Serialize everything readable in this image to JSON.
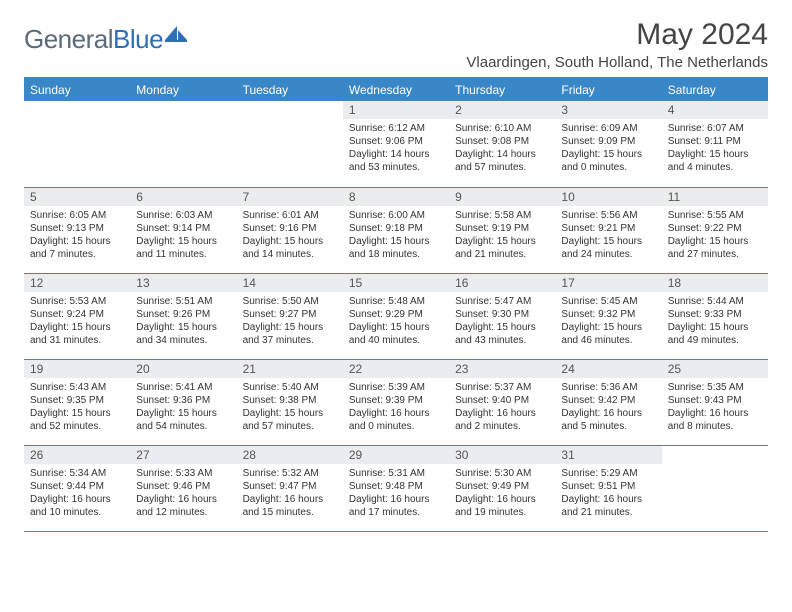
{
  "brand": {
    "part1": "General",
    "part2": "Blue"
  },
  "title": "May 2024",
  "location": "Vlaardingen, South Holland, The Netherlands",
  "colors": {
    "header_bg": "#3a87c7",
    "header_text": "#ffffff",
    "daynum_bg": "#e9edf0",
    "rule": "#3a87c7",
    "logo_gray": "#5a6a78",
    "logo_blue": "#2e6fb5"
  },
  "weekdays": [
    "Sunday",
    "Monday",
    "Tuesday",
    "Wednesday",
    "Thursday",
    "Friday",
    "Saturday"
  ],
  "weeks": [
    [
      null,
      null,
      null,
      {
        "n": "1",
        "sr": "6:12 AM",
        "ss": "9:06 PM",
        "dl": "14 hours and 53 minutes."
      },
      {
        "n": "2",
        "sr": "6:10 AM",
        "ss": "9:08 PM",
        "dl": "14 hours and 57 minutes."
      },
      {
        "n": "3",
        "sr": "6:09 AM",
        "ss": "9:09 PM",
        "dl": "15 hours and 0 minutes."
      },
      {
        "n": "4",
        "sr": "6:07 AM",
        "ss": "9:11 PM",
        "dl": "15 hours and 4 minutes."
      }
    ],
    [
      {
        "n": "5",
        "sr": "6:05 AM",
        "ss": "9:13 PM",
        "dl": "15 hours and 7 minutes."
      },
      {
        "n": "6",
        "sr": "6:03 AM",
        "ss": "9:14 PM",
        "dl": "15 hours and 11 minutes."
      },
      {
        "n": "7",
        "sr": "6:01 AM",
        "ss": "9:16 PM",
        "dl": "15 hours and 14 minutes."
      },
      {
        "n": "8",
        "sr": "6:00 AM",
        "ss": "9:18 PM",
        "dl": "15 hours and 18 minutes."
      },
      {
        "n": "9",
        "sr": "5:58 AM",
        "ss": "9:19 PM",
        "dl": "15 hours and 21 minutes."
      },
      {
        "n": "10",
        "sr": "5:56 AM",
        "ss": "9:21 PM",
        "dl": "15 hours and 24 minutes."
      },
      {
        "n": "11",
        "sr": "5:55 AM",
        "ss": "9:22 PM",
        "dl": "15 hours and 27 minutes."
      }
    ],
    [
      {
        "n": "12",
        "sr": "5:53 AM",
        "ss": "9:24 PM",
        "dl": "15 hours and 31 minutes."
      },
      {
        "n": "13",
        "sr": "5:51 AM",
        "ss": "9:26 PM",
        "dl": "15 hours and 34 minutes."
      },
      {
        "n": "14",
        "sr": "5:50 AM",
        "ss": "9:27 PM",
        "dl": "15 hours and 37 minutes."
      },
      {
        "n": "15",
        "sr": "5:48 AM",
        "ss": "9:29 PM",
        "dl": "15 hours and 40 minutes."
      },
      {
        "n": "16",
        "sr": "5:47 AM",
        "ss": "9:30 PM",
        "dl": "15 hours and 43 minutes."
      },
      {
        "n": "17",
        "sr": "5:45 AM",
        "ss": "9:32 PM",
        "dl": "15 hours and 46 minutes."
      },
      {
        "n": "18",
        "sr": "5:44 AM",
        "ss": "9:33 PM",
        "dl": "15 hours and 49 minutes."
      }
    ],
    [
      {
        "n": "19",
        "sr": "5:43 AM",
        "ss": "9:35 PM",
        "dl": "15 hours and 52 minutes."
      },
      {
        "n": "20",
        "sr": "5:41 AM",
        "ss": "9:36 PM",
        "dl": "15 hours and 54 minutes."
      },
      {
        "n": "21",
        "sr": "5:40 AM",
        "ss": "9:38 PM",
        "dl": "15 hours and 57 minutes."
      },
      {
        "n": "22",
        "sr": "5:39 AM",
        "ss": "9:39 PM",
        "dl": "16 hours and 0 minutes."
      },
      {
        "n": "23",
        "sr": "5:37 AM",
        "ss": "9:40 PM",
        "dl": "16 hours and 2 minutes."
      },
      {
        "n": "24",
        "sr": "5:36 AM",
        "ss": "9:42 PM",
        "dl": "16 hours and 5 minutes."
      },
      {
        "n": "25",
        "sr": "5:35 AM",
        "ss": "9:43 PM",
        "dl": "16 hours and 8 minutes."
      }
    ],
    [
      {
        "n": "26",
        "sr": "5:34 AM",
        "ss": "9:44 PM",
        "dl": "16 hours and 10 minutes."
      },
      {
        "n": "27",
        "sr": "5:33 AM",
        "ss": "9:46 PM",
        "dl": "16 hours and 12 minutes."
      },
      {
        "n": "28",
        "sr": "5:32 AM",
        "ss": "9:47 PM",
        "dl": "16 hours and 15 minutes."
      },
      {
        "n": "29",
        "sr": "5:31 AM",
        "ss": "9:48 PM",
        "dl": "16 hours and 17 minutes."
      },
      {
        "n": "30",
        "sr": "5:30 AM",
        "ss": "9:49 PM",
        "dl": "16 hours and 19 minutes."
      },
      {
        "n": "31",
        "sr": "5:29 AM",
        "ss": "9:51 PM",
        "dl": "16 hours and 21 minutes."
      },
      null
    ]
  ],
  "labels": {
    "sunrise": "Sunrise:",
    "sunset": "Sunset:",
    "daylight": "Daylight:"
  }
}
